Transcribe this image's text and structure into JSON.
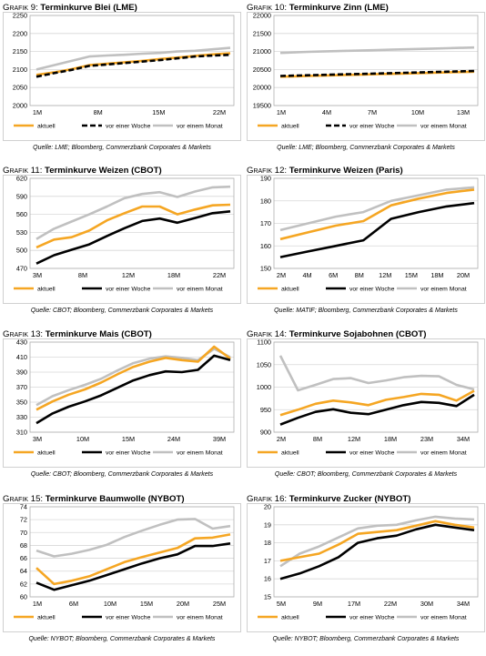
{
  "chart_data": [
    {
      "prefix": "Grafik 9:",
      "title": "Terminkurve Blei (LME)",
      "type": "line",
      "source": "Quelle: LME; Bloomberg, Commerzbank Corporates & Markets",
      "xticks": [
        "1M",
        "8M",
        "15M",
        "22M"
      ],
      "ylim": [
        2000,
        2250
      ],
      "yticks": [
        2000,
        2050,
        2100,
        2150,
        2200,
        2250
      ],
      "grid": true,
      "legend": "bottom",
      "series": [
        {
          "name": "aktuell",
          "color": "#f5a623",
          "dash": "",
          "values": [
            2085,
            2092,
            2101,
            2112,
            2116,
            2120,
            2124,
            2129,
            2133,
            2138,
            2142,
            2145
          ]
        },
        {
          "name": "vor einer Woche",
          "color": "#000000",
          "dash": "6,3",
          "values": [
            2080,
            2090,
            2099,
            2110,
            2114,
            2118,
            2122,
            2126,
            2131,
            2136,
            2139,
            2141
          ]
        },
        {
          "name": "vor einem Monat",
          "color": "#c0c0c0",
          "dash": "",
          "values": [
            2100,
            2112,
            2124,
            2136,
            2139,
            2141,
            2144,
            2146,
            2150,
            2152,
            2156,
            2160
          ]
        }
      ]
    },
    {
      "prefix": "Grafik 10:",
      "title": "Terminkurve Zinn (LME)",
      "type": "line",
      "source": "Quelle: LME; Bloomberg, Commerzbank Corporates & Markets",
      "xticks": [
        "1M",
        "4M",
        "7M",
        "10M",
        "13M"
      ],
      "ylim": [
        19500,
        22000
      ],
      "yticks": [
        19500,
        20000,
        20500,
        21000,
        21500,
        22000
      ],
      "grid": true,
      "legend": "bottom",
      "series": [
        {
          "name": "aktuell",
          "color": "#f5a623",
          "dash": "",
          "values": [
            20300,
            20310,
            20320,
            20330,
            20340,
            20350,
            20360,
            20370,
            20380,
            20390,
            20400,
            20410,
            20420,
            20430,
            20440
          ]
        },
        {
          "name": "vor einer Woche",
          "color": "#000000",
          "dash": "6,3",
          "values": [
            20320,
            20330,
            20340,
            20350,
            20360,
            20370,
            20380,
            20390,
            20400,
            20410,
            20420,
            20430,
            20440,
            20450,
            20460
          ]
        },
        {
          "name": "vor einem Monat",
          "color": "#c0c0c0",
          "dash": "",
          "values": [
            20960,
            20975,
            20990,
            21000,
            21010,
            21020,
            21030,
            21040,
            21050,
            21060,
            21070,
            21080,
            21090,
            21100,
            21110
          ]
        }
      ]
    },
    {
      "prefix": "Grafik 11:",
      "title": "Terminkurve Weizen (CBOT)",
      "type": "line",
      "source": "Quelle: CBOT; Bloomberg, Commerzbank Corporates & Markets",
      "xticks": [
        "3M",
        "8M",
        "12M",
        "18M",
        "22M"
      ],
      "ylim": [
        470,
        620
      ],
      "yticks": [
        470,
        500,
        530,
        560,
        590,
        620
      ],
      "grid": true,
      "legend": "bottom",
      "series": [
        {
          "name": "aktuell",
          "color": "#f5a623",
          "dash": "",
          "values": [
            505,
            518,
            522,
            533,
            550,
            562,
            573,
            573,
            560,
            568,
            575,
            576
          ]
        },
        {
          "name": "vor einer Woche",
          "color": "#000000",
          "dash": "",
          "values": [
            478,
            492,
            501,
            510,
            524,
            537,
            549,
            553,
            546,
            554,
            562,
            565
          ]
        },
        {
          "name": "vor einem Monat",
          "color": "#c0c0c0",
          "dash": "",
          "values": [
            519,
            536,
            548,
            560,
            573,
            587,
            594,
            597,
            589,
            598,
            605,
            606
          ]
        }
      ]
    },
    {
      "prefix": "Grafik 12:",
      "title": "Terminkurve Weizen (Paris)",
      "type": "line",
      "source": "Quelle: MATIF; Bloomberg, Commerzbank Corporates & Markets",
      "xticks": [
        "2M",
        "4M",
        "6M",
        "8M",
        "12M",
        "15M",
        "18M",
        "20M"
      ],
      "ylim": [
        150,
        190
      ],
      "yticks": [
        150,
        160,
        170,
        180,
        190
      ],
      "grid": true,
      "legend": "bottom",
      "series": [
        {
          "name": "aktuell",
          "color": "#f5a623",
          "dash": "",
          "values": [
            163,
            166,
            169,
            171,
            178,
            181,
            183.5,
            185
          ]
        },
        {
          "name": "vor einer Woche",
          "color": "#000000",
          "dash": "",
          "values": [
            155,
            157.5,
            160,
            162.5,
            172,
            175,
            177.5,
            179
          ]
        },
        {
          "name": "vor einem Monat",
          "color": "#c0c0c0",
          "dash": "",
          "values": [
            167,
            170,
            173,
            175,
            180,
            182.5,
            185,
            186
          ]
        }
      ]
    },
    {
      "prefix": "Grafik 13:",
      "title": "Terminkurve Mais (CBOT)",
      "type": "line",
      "source": "Quelle: CBOT; Bloomberg, Commerzbank Corporates & Markets",
      "xticks": [
        "3M",
        "10M",
        "15M",
        "24M",
        "39M"
      ],
      "ylim": [
        310,
        430
      ],
      "yticks": [
        310,
        330,
        350,
        370,
        390,
        410,
        430
      ],
      "grid": true,
      "legend": "bottom",
      "series": [
        {
          "name": "aktuell",
          "color": "#f5a623",
          "dash": "",
          "values": [
            340,
            351,
            360,
            367,
            376,
            387,
            397,
            404,
            409,
            406,
            404,
            424,
            408
          ]
        },
        {
          "name": "vor einer Woche",
          "color": "#000000",
          "dash": "",
          "values": [
            322,
            335,
            344,
            351,
            359,
            369,
            379,
            386,
            391,
            390,
            393,
            412,
            406
          ]
        },
        {
          "name": "vor einem Monat",
          "color": "#c0c0c0",
          "dash": "",
          "values": [
            346,
            358,
            366,
            373,
            381,
            392,
            402,
            408,
            411,
            409,
            406,
            421,
            410
          ]
        }
      ]
    },
    {
      "prefix": "Grafik 14:",
      "title": "Terminkurve Sojabohnen (CBOT)",
      "type": "line",
      "source": "Quelle: CBOT; Bloomberg, Commerzbank Corporates & Markets",
      "xticks": [
        "2M",
        "8M",
        "12M",
        "18M",
        "23M",
        "34M"
      ],
      "ylim": [
        900,
        1100
      ],
      "yticks": [
        900,
        950,
        1000,
        1050,
        1100
      ],
      "grid": true,
      "legend": "bottom",
      "series": [
        {
          "name": "aktuell",
          "color": "#f5a623",
          "dash": "",
          "values": [
            938,
            950,
            963,
            970,
            966,
            960,
            972,
            978,
            985,
            983,
            970,
            992
          ]
        },
        {
          "name": "vor einer Woche",
          "color": "#000000",
          "dash": "",
          "values": [
            917,
            932,
            945,
            951,
            943,
            940,
            950,
            960,
            967,
            965,
            958,
            983
          ]
        },
        {
          "name": "vor einem Monat",
          "color": "#c0c0c0",
          "dash": "",
          "values": [
            1070,
            993,
            1005,
            1018,
            1020,
            1009,
            1015,
            1022,
            1025,
            1024,
            1005,
            995
          ]
        }
      ]
    },
    {
      "prefix": "Grafik 15:",
      "title": "Terminkurve Baumwolle (NYBOT)",
      "type": "line",
      "source": "Quelle: NYBOT; Bloomberg, Commerzbank Corporates & Markets",
      "xticks": [
        "1M",
        "6M",
        "10M",
        "15M",
        "20M",
        "25M"
      ],
      "ylim": [
        60,
        74
      ],
      "yticks": [
        60,
        62,
        64,
        66,
        68,
        70,
        72,
        74
      ],
      "grid": true,
      "legend": "bottom",
      "series": [
        {
          "name": "aktuell",
          "color": "#f5a623",
          "dash": "",
          "values": [
            64.5,
            62,
            62.5,
            63.2,
            64.3,
            65.4,
            66.2,
            66.9,
            67.6,
            69.1,
            69.2,
            69.7
          ]
        },
        {
          "name": "vor einer Woche",
          "color": "#000000",
          "dash": "",
          "values": [
            62.2,
            61.1,
            61.8,
            62.5,
            63.4,
            64.3,
            65.2,
            66,
            66.6,
            67.9,
            67.9,
            68.3
          ]
        },
        {
          "name": "vor einem Monat",
          "color": "#c0c0c0",
          "dash": "",
          "values": [
            67.2,
            66.3,
            66.7,
            67.3,
            68.1,
            69.3,
            70.3,
            71.2,
            72,
            72.1,
            70.6,
            71
          ]
        }
      ]
    },
    {
      "prefix": "Grafik 16:",
      "title": "Terminkurve Zucker (NYBOT)",
      "type": "line",
      "source": "Quelle: NYBOT; Bloomberg, Commerzbank Corporates & Markets",
      "xticks": [
        "5M",
        "9M",
        "17M",
        "22M",
        "30M",
        "34M"
      ],
      "ylim": [
        15,
        20
      ],
      "yticks": [
        15,
        16,
        17,
        18,
        19,
        20
      ],
      "grid": true,
      "legend": "bottom",
      "series": [
        {
          "name": "aktuell",
          "color": "#f5a623",
          "dash": "",
          "values": [
            17,
            17.2,
            17.4,
            17.9,
            18.5,
            18.6,
            18.7,
            18.95,
            19.2,
            19.0,
            18.85
          ]
        },
        {
          "name": "vor einer Woche",
          "color": "#000000",
          "dash": "",
          "values": [
            16,
            16.3,
            16.7,
            17.2,
            18,
            18.25,
            18.4,
            18.75,
            19,
            18.85,
            18.7
          ]
        },
        {
          "name": "vor einem Monat",
          "color": "#c0c0c0",
          "dash": "",
          "values": [
            16.7,
            17.4,
            17.8,
            18.3,
            18.8,
            18.95,
            19,
            19.25,
            19.45,
            19.35,
            19.3
          ]
        }
      ]
    }
  ]
}
